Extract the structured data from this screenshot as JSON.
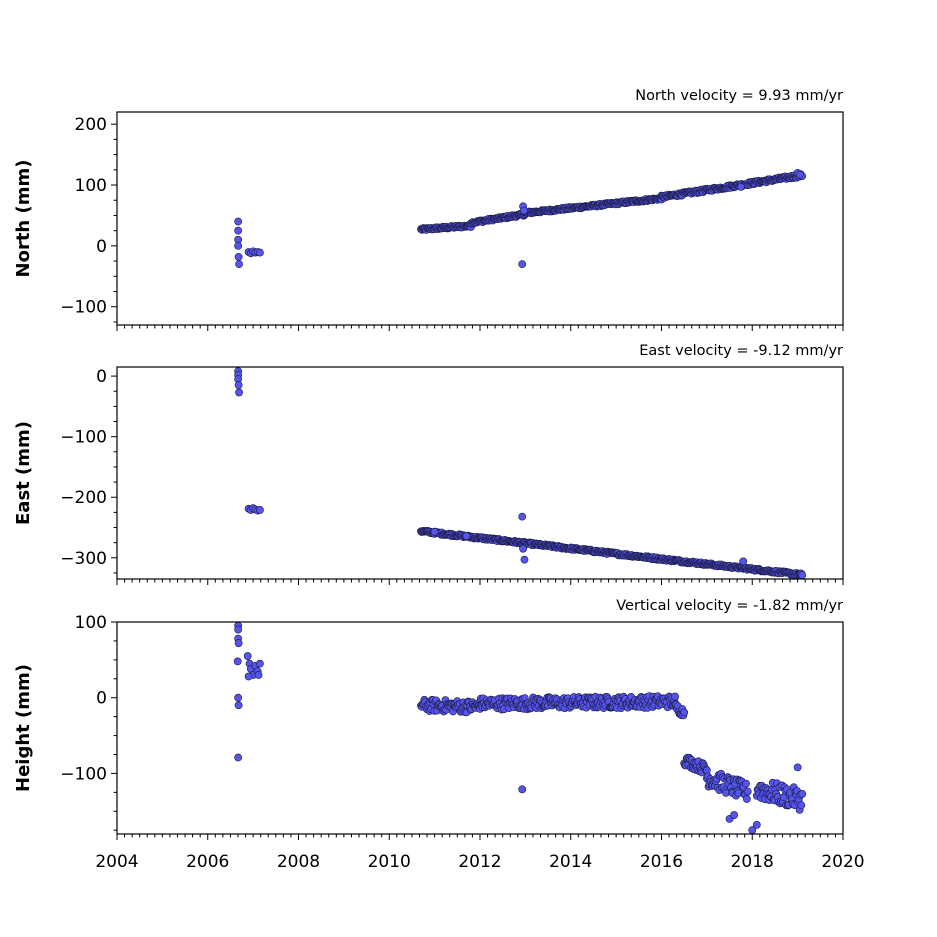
{
  "chart_data": [
    {
      "type": "scatter",
      "annotation": "North velocity = 9.93 mm/yr",
      "ylabel": "North (mm)",
      "xlim": [
        2004,
        2020
      ],
      "ylim": [
        -130,
        220
      ],
      "yticks": [
        200,
        100,
        0,
        -100
      ],
      "ytick_labels": [
        "200",
        "100",
        "0",
        "−100"
      ],
      "show_x_tick_labels": false,
      "segments": [
        {
          "x0": 2010.7,
          "x1": 2011.8,
          "y0": 27,
          "y1": 33,
          "spread": 2
        },
        {
          "x0": 2011.8,
          "x1": 2013.0,
          "y0": 38,
          "y1": 52,
          "spread": 2
        },
        {
          "x0": 2013.0,
          "x1": 2016.0,
          "y0": 54,
          "y1": 78,
          "spread": 2
        },
        {
          "x0": 2016.0,
          "x1": 2019.1,
          "y0": 80,
          "y1": 116,
          "spread": 2.5
        }
      ],
      "points": [
        {
          "x": 2006.67,
          "y": 40
        },
        {
          "x": 2006.67,
          "y": 25
        },
        {
          "x": 2006.67,
          "y": 10
        },
        {
          "x": 2006.67,
          "y": 0
        },
        {
          "x": 2006.68,
          "y": -18
        },
        {
          "x": 2006.69,
          "y": -30
        },
        {
          "x": 2006.9,
          "y": -10
        },
        {
          "x": 2006.95,
          "y": -12
        },
        {
          "x": 2007.0,
          "y": -9
        },
        {
          "x": 2007.05,
          "y": -11
        },
        {
          "x": 2007.1,
          "y": -10
        },
        {
          "x": 2007.15,
          "y": -11
        },
        {
          "x": 2012.93,
          "y": -30
        },
        {
          "x": 2012.95,
          "y": 65
        },
        {
          "x": 2012.97,
          "y": 58
        },
        {
          "x": 2017.75,
          "y": 97
        },
        {
          "x": 2019.0,
          "y": 120
        },
        {
          "x": 2019.05,
          "y": 117
        }
      ]
    },
    {
      "type": "scatter",
      "annotation": "East velocity = -9.12 mm/yr",
      "ylabel": "East (mm)",
      "xlim": [
        2004,
        2020
      ],
      "ylim": [
        -335,
        15
      ],
      "yticks": [
        0,
        -100,
        -200,
        -300
      ],
      "ytick_labels": [
        "0",
        "−100",
        "−200",
        "−300"
      ],
      "show_x_tick_labels": false,
      "segments": [
        {
          "x0": 2010.7,
          "x1": 2016.0,
          "y0": -256,
          "y1": -302,
          "spread": 2
        },
        {
          "x0": 2016.0,
          "x1": 2019.1,
          "y0": -302,
          "y1": -328,
          "spread": 2
        }
      ],
      "points": [
        {
          "x": 2006.67,
          "y": 8
        },
        {
          "x": 2006.67,
          "y": 2
        },
        {
          "x": 2006.67,
          "y": -5
        },
        {
          "x": 2006.68,
          "y": -15
        },
        {
          "x": 2006.69,
          "y": -27
        },
        {
          "x": 2006.9,
          "y": -219
        },
        {
          "x": 2006.95,
          "y": -221
        },
        {
          "x": 2007.0,
          "y": -218
        },
        {
          "x": 2007.05,
          "y": -220
        },
        {
          "x": 2007.1,
          "y": -222
        },
        {
          "x": 2007.15,
          "y": -221
        },
        {
          "x": 2012.93,
          "y": -232
        },
        {
          "x": 2012.95,
          "y": -285
        },
        {
          "x": 2012.98,
          "y": -303
        },
        {
          "x": 2011.0,
          "y": -257
        },
        {
          "x": 2011.7,
          "y": -264
        },
        {
          "x": 2017.8,
          "y": -306
        }
      ]
    },
    {
      "type": "scatter",
      "annotation": "Vertical velocity = -1.82 mm/yr",
      "ylabel": "Height (mm)",
      "xlim": [
        2004,
        2020
      ],
      "ylim": [
        -180,
        100
      ],
      "yticks": [
        100,
        0,
        -100
      ],
      "ytick_labels": [
        "100",
        "0",
        "−100"
      ],
      "show_x_tick_labels": true,
      "xticks": [
        2004,
        2006,
        2008,
        2010,
        2012,
        2014,
        2016,
        2018,
        2020
      ],
      "xtick_labels": [
        "2004",
        "2006",
        "2008",
        "2010",
        "2012",
        "2014",
        "2016",
        "2018",
        "2020"
      ],
      "segments": [
        {
          "x0": 2010.7,
          "x1": 2012.0,
          "y0": -10,
          "y1": -12,
          "spread": 8
        },
        {
          "x0": 2012.0,
          "x1": 2016.3,
          "y0": -8,
          "y1": -5,
          "spread": 8
        },
        {
          "x0": 2016.3,
          "x1": 2016.5,
          "y0": -12,
          "y1": -20,
          "spread": 6
        },
        {
          "x0": 2016.5,
          "x1": 2017.0,
          "y0": -82,
          "y1": -95,
          "spread": 7
        },
        {
          "x0": 2017.0,
          "x1": 2017.9,
          "y0": -105,
          "y1": -125,
          "spread": 12
        },
        {
          "x0": 2018.1,
          "x1": 2019.1,
          "y0": -120,
          "y1": -135,
          "spread": 14
        }
      ],
      "points": [
        {
          "x": 2006.67,
          "y": 95
        },
        {
          "x": 2006.67,
          "y": 90
        },
        {
          "x": 2006.67,
          "y": 78
        },
        {
          "x": 2006.68,
          "y": 72
        },
        {
          "x": 2006.66,
          "y": 48
        },
        {
          "x": 2006.67,
          "y": 0
        },
        {
          "x": 2006.68,
          "y": -10
        },
        {
          "x": 2006.67,
          "y": -79
        },
        {
          "x": 2006.88,
          "y": 55
        },
        {
          "x": 2006.92,
          "y": 45
        },
        {
          "x": 2006.95,
          "y": 38
        },
        {
          "x": 2007.0,
          "y": 30
        },
        {
          "x": 2007.05,
          "y": 42
        },
        {
          "x": 2007.1,
          "y": 35
        },
        {
          "x": 2007.15,
          "y": 45
        },
        {
          "x": 2006.9,
          "y": 28
        },
        {
          "x": 2007.12,
          "y": 30
        },
        {
          "x": 2012.93,
          "y": -121
        },
        {
          "x": 2018.0,
          "y": -175
        },
        {
          "x": 2018.1,
          "y": -168
        },
        {
          "x": 2019.0,
          "y": -92
        },
        {
          "x": 2017.5,
          "y": -160
        },
        {
          "x": 2017.6,
          "y": -155
        }
      ]
    }
  ]
}
